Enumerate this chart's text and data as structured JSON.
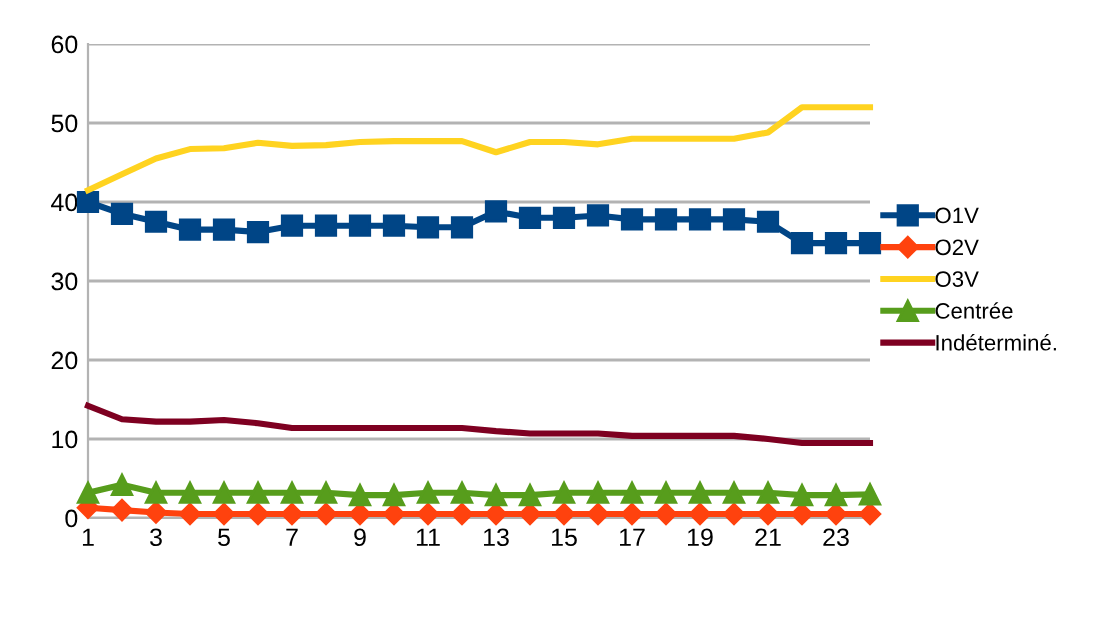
{
  "chart_data": {
    "type": "line",
    "categories": [
      "1",
      null,
      "3",
      null,
      "5",
      null,
      "7",
      null,
      "9",
      null,
      "11",
      null,
      "13",
      null,
      "15",
      null,
      "17",
      null,
      "19",
      null,
      "21",
      null,
      "23",
      null
    ],
    "ylim": [
      0,
      60
    ],
    "yticks": [
      0,
      10,
      20,
      30,
      40,
      50,
      60
    ],
    "grid": "y",
    "legend": "right",
    "series": [
      {
        "name": "O1V",
        "color": "#004586",
        "marker": "square",
        "values": [
          40,
          38.5,
          37.5,
          36.5,
          36.5,
          36.2,
          37,
          37,
          37,
          37,
          36.8,
          36.8,
          38.8,
          38,
          38,
          38.3,
          37.8,
          37.8,
          37.8,
          37.8,
          37.5,
          34.8,
          34.8,
          34.8
        ]
      },
      {
        "name": "O2V",
        "color": "#ff420e",
        "marker": "diamond",
        "values": [
          1.3,
          1.0,
          0.7,
          0.5,
          0.5,
          0.5,
          0.5,
          0.5,
          0.5,
          0.5,
          0.5,
          0.5,
          0.5,
          0.5,
          0.5,
          0.5,
          0.5,
          0.5,
          0.5,
          0.5,
          0.5,
          0.5,
          0.5,
          0.5
        ]
      },
      {
        "name": "O3V",
        "color": "#ffd320",
        "marker": "none",
        "values": [
          41.5,
          43.5,
          45.5,
          46.7,
          46.8,
          47.5,
          47.1,
          47.2,
          47.6,
          47.7,
          47.7,
          47.7,
          46.3,
          47.6,
          47.6,
          47.3,
          48,
          48,
          48,
          48,
          48.8,
          52,
          52,
          52
        ]
      },
      {
        "name": "Centrée",
        "color": "#579d1c",
        "marker": "triangle",
        "values": [
          3.2,
          4.2,
          3.2,
          3.2,
          3.2,
          3.2,
          3.2,
          3.2,
          2.9,
          2.9,
          3.2,
          3.2,
          2.9,
          2.9,
          3.2,
          3.2,
          3.2,
          3.2,
          3.2,
          3.2,
          3.2,
          2.9,
          2.9,
          3.0
        ]
      },
      {
        "name": "Indéterminé.",
        "color": "#7e0021",
        "marker": "none",
        "values": [
          14.2,
          12.5,
          12.2,
          12.2,
          12.4,
          12,
          11.4,
          11.4,
          11.4,
          11.4,
          11.4,
          11.4,
          11,
          10.7,
          10.7,
          10.7,
          10.4,
          10.4,
          10.4,
          10.4,
          10.0,
          9.5,
          9.5,
          9.5
        ]
      }
    ]
  }
}
